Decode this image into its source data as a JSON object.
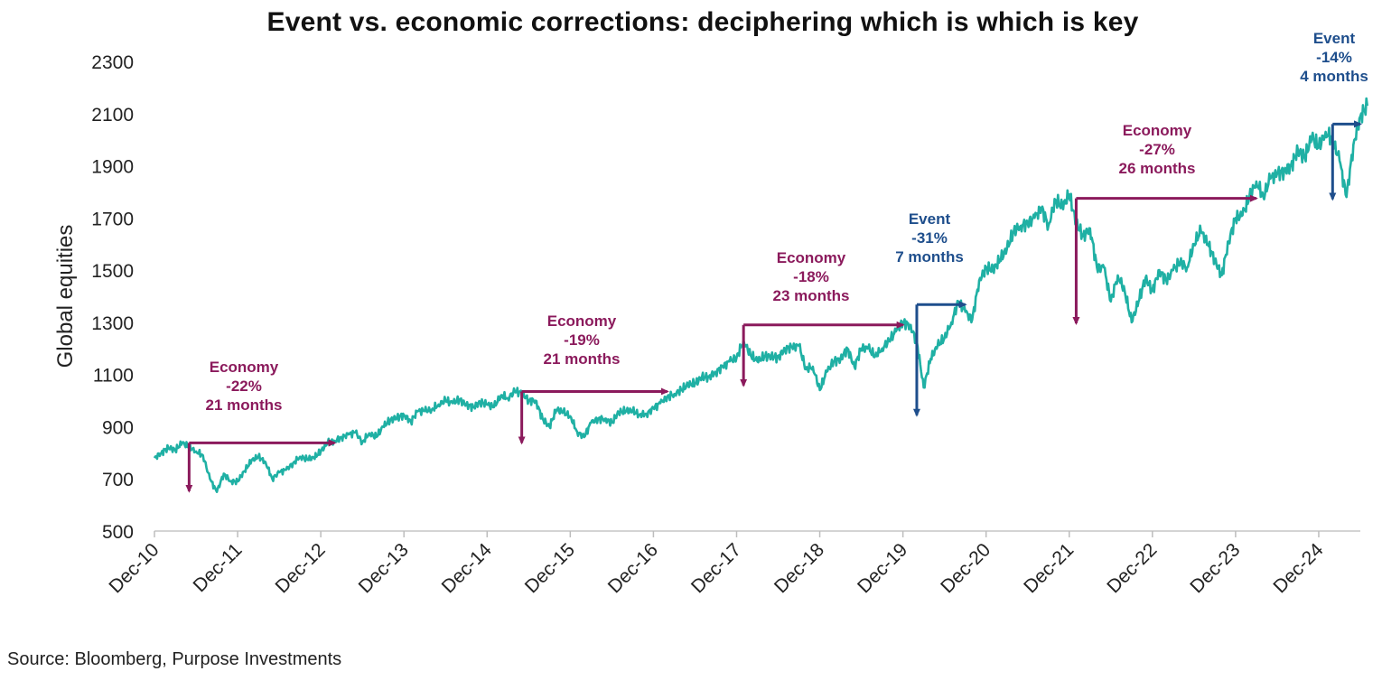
{
  "chart_data": {
    "type": "line",
    "title": "Event vs. economic corrections: deciphering which is which is key",
    "ylabel": "Global equities",
    "xlabel": "",
    "ylim": [
      500,
      2300
    ],
    "yticks": [
      500,
      700,
      900,
      1100,
      1300,
      1500,
      1700,
      1900,
      2100,
      2300
    ],
    "xticks": [
      "Dec-10",
      "Dec-11",
      "Dec-12",
      "Dec-13",
      "Dec-14",
      "Dec-15",
      "Dec-16",
      "Dec-17",
      "Dec-18",
      "Dec-19",
      "Dec-20",
      "Dec-21",
      "Dec-22",
      "Dec-23",
      "Dec-24"
    ],
    "xlim": [
      "Dec-10",
      "Jun-25"
    ],
    "grid": false,
    "legend": "none",
    "line_color": "#1fb0a4",
    "series": [
      {
        "values_by_month": [
          [
            "2010-12",
            780
          ],
          [
            "2011-01",
            800
          ],
          [
            "2011-02",
            820
          ],
          [
            "2011-03",
            810
          ],
          [
            "2011-04",
            838
          ],
          [
            "2011-05",
            822
          ],
          [
            "2011-06",
            805
          ],
          [
            "2011-07",
            790
          ],
          [
            "2011-08",
            700
          ],
          [
            "2011-09",
            650
          ],
          [
            "2011-10",
            720
          ],
          [
            "2011-11",
            690
          ],
          [
            "2011-12",
            690
          ],
          [
            "2012-01",
            730
          ],
          [
            "2012-02",
            770
          ],
          [
            "2012-03",
            785
          ],
          [
            "2012-04",
            765
          ],
          [
            "2012-05",
            700
          ],
          [
            "2012-06",
            725
          ],
          [
            "2012-07",
            735
          ],
          [
            "2012-08",
            760
          ],
          [
            "2012-09",
            785
          ],
          [
            "2012-10",
            775
          ],
          [
            "2012-11",
            780
          ],
          [
            "2012-12",
            805
          ],
          [
            "2013-01",
            840
          ],
          [
            "2013-02",
            845
          ],
          [
            "2013-03",
            860
          ],
          [
            "2013-04",
            870
          ],
          [
            "2013-05",
            878
          ],
          [
            "2013-06",
            840
          ],
          [
            "2013-07",
            875
          ],
          [
            "2013-08",
            860
          ],
          [
            "2013-09",
            900
          ],
          [
            "2013-10",
            925
          ],
          [
            "2013-11",
            935
          ],
          [
            "2013-12",
            945
          ],
          [
            "2014-01",
            920
          ],
          [
            "2014-02",
            960
          ],
          [
            "2014-03",
            960
          ],
          [
            "2014-04",
            965
          ],
          [
            "2014-05",
            985
          ],
          [
            "2014-06",
            1000
          ],
          [
            "2014-07",
            990
          ],
          [
            "2014-08",
            1005
          ],
          [
            "2014-09",
            985
          ],
          [
            "2014-10",
            975
          ],
          [
            "2014-11",
            995
          ],
          [
            "2014-12",
            985
          ],
          [
            "2015-01",
            975
          ],
          [
            "2015-02",
            1020
          ],
          [
            "2015-03",
            1010
          ],
          [
            "2015-04",
            1035
          ],
          [
            "2015-05",
            1030
          ],
          [
            "2015-06",
            1000
          ],
          [
            "2015-07",
            1000
          ],
          [
            "2015-08",
            930
          ],
          [
            "2015-09",
            900
          ],
          [
            "2015-10",
            965
          ],
          [
            "2015-11",
            955
          ],
          [
            "2015-12",
            940
          ],
          [
            "2016-01",
            880
          ],
          [
            "2016-02",
            860
          ],
          [
            "2016-03",
            915
          ],
          [
            "2016-04",
            930
          ],
          [
            "2016-05",
            930
          ],
          [
            "2016-06",
            915
          ],
          [
            "2016-07",
            955
          ],
          [
            "2016-08",
            960
          ],
          [
            "2016-09",
            960
          ],
          [
            "2016-10",
            945
          ],
          [
            "2016-11",
            950
          ],
          [
            "2016-12",
            970
          ],
          [
            "2017-01",
            990
          ],
          [
            "2017-02",
            1015
          ],
          [
            "2017-03",
            1025
          ],
          [
            "2017-04",
            1040
          ],
          [
            "2017-05",
            1060
          ],
          [
            "2017-06",
            1065
          ],
          [
            "2017-07",
            1090
          ],
          [
            "2017-08",
            1090
          ],
          [
            "2017-09",
            1110
          ],
          [
            "2017-10",
            1130
          ],
          [
            "2017-11",
            1150
          ],
          [
            "2017-12",
            1165
          ],
          [
            "2018-01",
            1230
          ],
          [
            "2018-02",
            1175
          ],
          [
            "2018-03",
            1150
          ],
          [
            "2018-04",
            1170
          ],
          [
            "2018-05",
            1170
          ],
          [
            "2018-06",
            1165
          ],
          [
            "2018-07",
            1200
          ],
          [
            "2018-08",
            1205
          ],
          [
            "2018-09",
            1210
          ],
          [
            "2018-10",
            1120
          ],
          [
            "2018-11",
            1130
          ],
          [
            "2018-12",
            1040
          ],
          [
            "2019-01",
            1110
          ],
          [
            "2019-02",
            1150
          ],
          [
            "2019-03",
            1160
          ],
          [
            "2019-04",
            1200
          ],
          [
            "2019-05",
            1130
          ],
          [
            "2019-06",
            1200
          ],
          [
            "2019-07",
            1200
          ],
          [
            "2019-08",
            1170
          ],
          [
            "2019-09",
            1200
          ],
          [
            "2019-10",
            1230
          ],
          [
            "2019-11",
            1265
          ],
          [
            "2019-12",
            1300
          ],
          [
            "2020-01",
            1290
          ],
          [
            "2020-02",
            1225
          ],
          [
            "2020-03",
            1050
          ],
          [
            "2020-04",
            1160
          ],
          [
            "2020-05",
            1210
          ],
          [
            "2020-06",
            1240
          ],
          [
            "2020-07",
            1300
          ],
          [
            "2020-08",
            1380
          ],
          [
            "2020-09",
            1340
          ],
          [
            "2020-10",
            1310
          ],
          [
            "2020-11",
            1460
          ],
          [
            "2020-12",
            1510
          ],
          [
            "2021-01",
            1500
          ],
          [
            "2021-02",
            1540
          ],
          [
            "2021-03",
            1580
          ],
          [
            "2021-04",
            1650
          ],
          [
            "2021-05",
            1670
          ],
          [
            "2021-06",
            1680
          ],
          [
            "2021-07",
            1700
          ],
          [
            "2021-08",
            1740
          ],
          [
            "2021-09",
            1670
          ],
          [
            "2021-10",
            1770
          ],
          [
            "2021-11",
            1740
          ],
          [
            "2021-12",
            1790
          ],
          [
            "2022-01",
            1680
          ],
          [
            "2022-02",
            1630
          ],
          [
            "2022-03",
            1660
          ],
          [
            "2022-04",
            1510
          ],
          [
            "2022-05",
            1510
          ],
          [
            "2022-06",
            1380
          ],
          [
            "2022-07",
            1480
          ],
          [
            "2022-08",
            1420
          ],
          [
            "2022-09",
            1300
          ],
          [
            "2022-10",
            1380
          ],
          [
            "2022-11",
            1470
          ],
          [
            "2022-12",
            1420
          ],
          [
            "2023-01",
            1500
          ],
          [
            "2023-02",
            1460
          ],
          [
            "2023-03",
            1500
          ],
          [
            "2023-04",
            1530
          ],
          [
            "2023-05",
            1510
          ],
          [
            "2023-06",
            1600
          ],
          [
            "2023-07",
            1650
          ],
          [
            "2023-08",
            1600
          ],
          [
            "2023-09",
            1540
          ],
          [
            "2023-10",
            1480
          ],
          [
            "2023-11",
            1610
          ],
          [
            "2023-12",
            1700
          ],
          [
            "2024-01",
            1710
          ],
          [
            "2024-02",
            1780
          ],
          [
            "2024-03",
            1840
          ],
          [
            "2024-04",
            1780
          ],
          [
            "2024-05",
            1850
          ],
          [
            "2024-06",
            1870
          ],
          [
            "2024-07",
            1880
          ],
          [
            "2024-08",
            1900
          ],
          [
            "2024-09",
            1960
          ],
          [
            "2024-10",
            1930
          ],
          [
            "2024-11",
            2010
          ],
          [
            "2024-12",
            1970
          ],
          [
            "2025-01",
            2030
          ],
          [
            "2025-02",
            2000
          ],
          [
            "2025-03",
            1920
          ],
          [
            "2025-04",
            1780
          ],
          [
            "2025-05",
            1980
          ],
          [
            "2025-06",
            2090
          ],
          [
            "2025-07",
            2130
          ]
        ]
      }
    ],
    "annotations": [
      {
        "category": "Economy",
        "decline": "-22%",
        "duration": "21 months",
        "color": "#8b1a5c",
        "peak_date": "2011-05",
        "peak_value": 838,
        "recovery_date": "2013-02",
        "trough_value": 653
      },
      {
        "category": "Economy",
        "decline": "-19%",
        "duration": "21 months",
        "color": "#8b1a5c",
        "peak_date": "2015-05",
        "peak_value": 1035,
        "recovery_date": "2017-02",
        "trough_value": 838
      },
      {
        "category": "Economy",
        "decline": "-18%",
        "duration": "23 months",
        "color": "#8b1a5c",
        "peak_date": "2018-01",
        "peak_value": 1290,
        "recovery_date": "2019-12",
        "trough_value": 1058
      },
      {
        "category": "Event",
        "decline": "-31%",
        "duration": "7 months",
        "color": "#1e4e8c",
        "peak_date": "2020-02",
        "peak_value": 1368,
        "recovery_date": "2020-09",
        "trough_value": 944
      },
      {
        "category": "Economy",
        "decline": "-27%",
        "duration": "26 months",
        "color": "#8b1a5c",
        "peak_date": "2022-01",
        "peak_value": 1775,
        "recovery_date": "2024-03",
        "trough_value": 1296
      },
      {
        "category": "Event",
        "decline": "-14%",
        "duration": "4 months",
        "color": "#1e4e8c",
        "peak_date": "2025-02",
        "peak_value": 2060,
        "recovery_date": "2025-06",
        "trough_value": 1772
      }
    ],
    "source": "Source: Bloomberg, Purpose Investments"
  }
}
